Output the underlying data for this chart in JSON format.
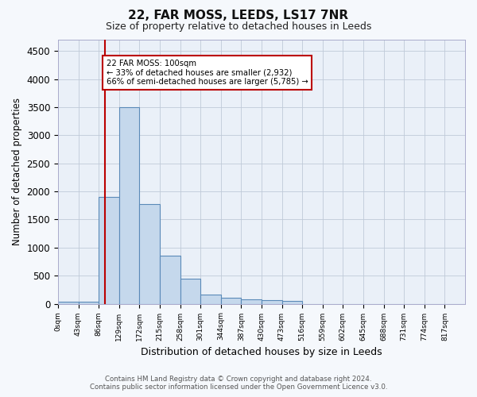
{
  "title": "22, FAR MOSS, LEEDS, LS17 7NR",
  "subtitle": "Size of property relative to detached houses in Leeds",
  "xlabel": "Distribution of detached houses by size in Leeds",
  "ylabel": "Number of detached properties",
  "bar_edges": [
    0,
    43,
    86,
    129,
    172,
    215,
    258,
    301,
    344,
    387,
    430,
    473,
    516,
    559,
    602,
    645,
    688,
    731,
    774,
    817,
    860
  ],
  "bar_heights": [
    30,
    30,
    1900,
    3500,
    1780,
    850,
    450,
    160,
    100,
    75,
    60,
    55,
    0,
    0,
    0,
    0,
    0,
    0,
    0,
    0
  ],
  "bar_color": "#c5d8ec",
  "bar_edgecolor": "#5a8ab8",
  "bar_linewidth": 0.8,
  "grid_color": "#c0cad8",
  "grid_alpha": 1.0,
  "property_size": 100,
  "red_line_color": "#bb0000",
  "annotation_text": "22 FAR MOSS: 100sqm\n← 33% of detached houses are smaller (2,932)\n66% of semi-detached houses are larger (5,785) →",
  "annotation_box_facecolor": "#ffffff",
  "annotation_box_edgecolor": "#bb0000",
  "ylim": [
    0,
    4700
  ],
  "yticks": [
    0,
    500,
    1000,
    1500,
    2000,
    2500,
    3000,
    3500,
    4000,
    4500
  ],
  "footer_line1": "Contains HM Land Registry data © Crown copyright and database right 2024.",
  "footer_line2": "Contains public sector information licensed under the Open Government Licence v3.0.",
  "fig_facecolor": "#f5f8fc",
  "plot_facecolor": "#eaf0f8"
}
